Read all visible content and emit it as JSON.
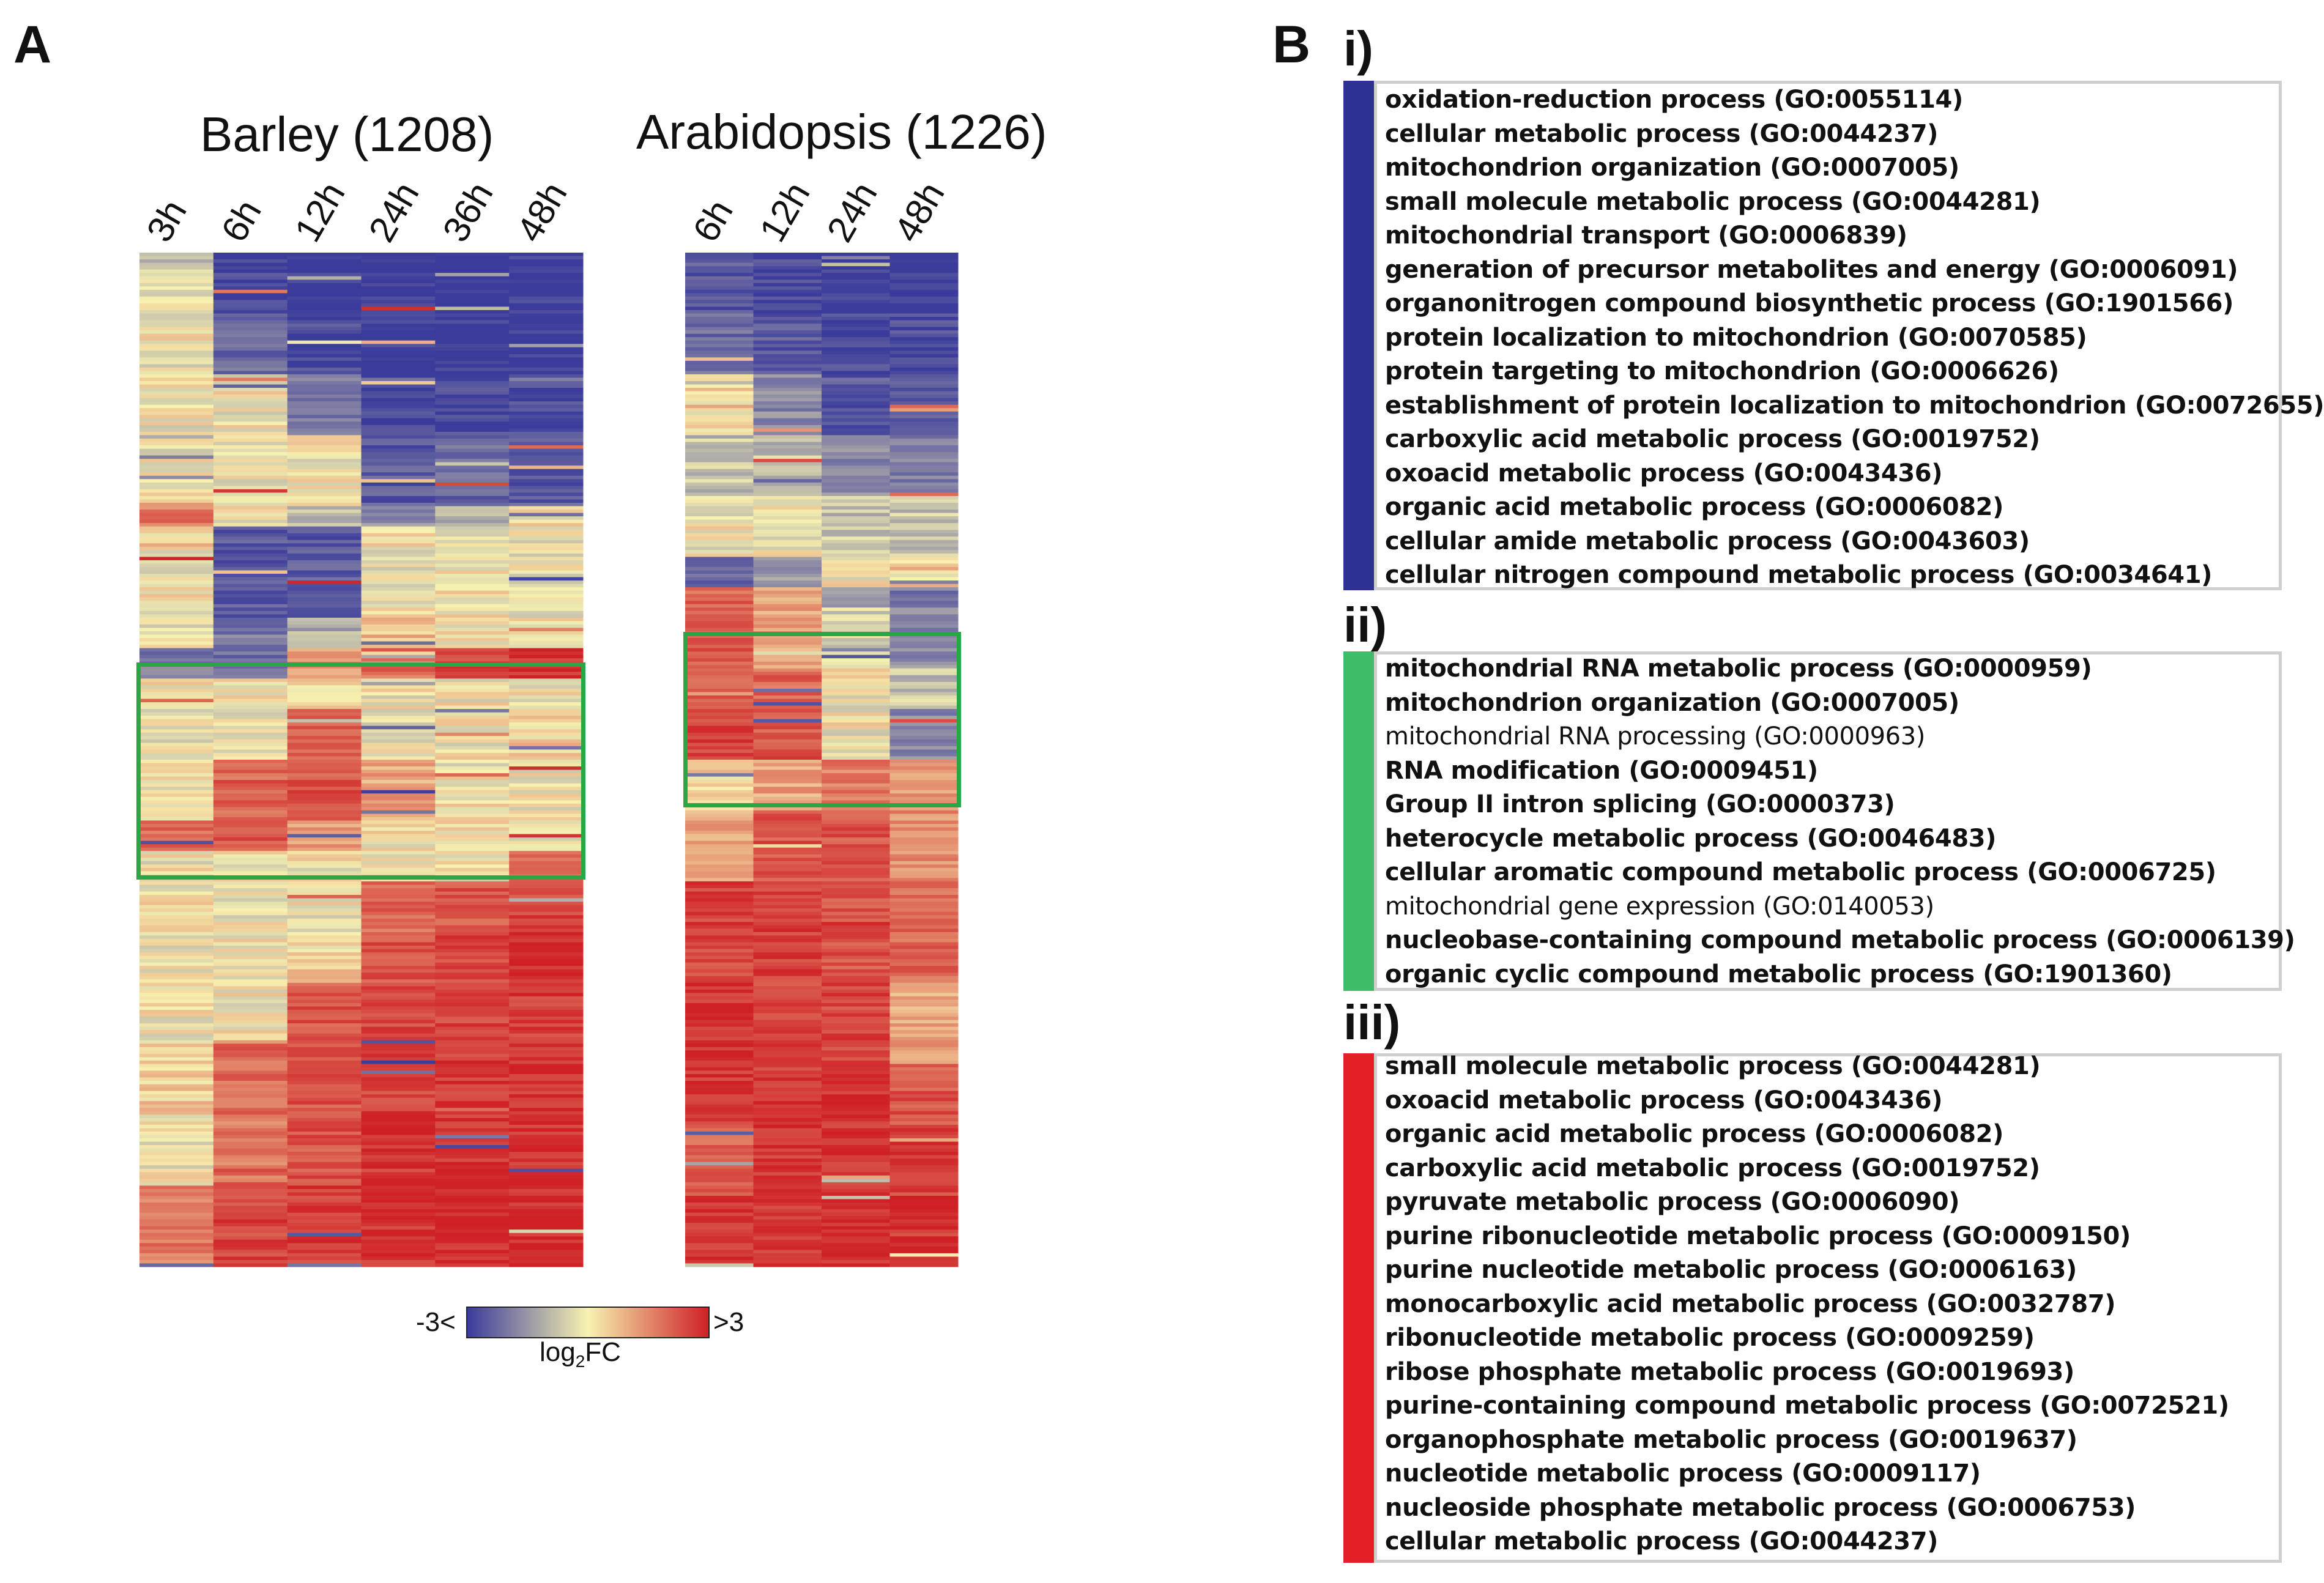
{
  "panel_a_label": "A",
  "panel_b_label": "B",
  "chart_data": [
    {
      "type": "heatmap",
      "title": "Barley (1208)",
      "columns": [
        "3h",
        "6h",
        "12h",
        "24h",
        "36h",
        "48h"
      ],
      "highlight_box": "green"
    },
    {
      "type": "heatmap",
      "title": "Arabidopsis (1226)",
      "columns": [
        "6h",
        "12h",
        "24h",
        "48h"
      ],
      "highlight_box": "green"
    }
  ],
  "colorbar": {
    "min_label": "-3<",
    "max_label": ">3",
    "label_main": "log",
    "label_sub": "2",
    "label_tail": "FC",
    "colors": [
      "#3b3b9c",
      "#f7f2b0",
      "#cf2026"
    ]
  },
  "go_groups": [
    {
      "label": "i)",
      "color": "#2e3192",
      "terms": [
        {
          "text": "oxidation-reduction process (GO:0055114)",
          "bold": true
        },
        {
          "text": "cellular metabolic process (GO:0044237)",
          "bold": true
        },
        {
          "text": "mitochondrion organization (GO:0007005)",
          "bold": true
        },
        {
          "text": "small molecule metabolic process (GO:0044281)",
          "bold": true
        },
        {
          "text": "mitochondrial transport (GO:0006839)",
          "bold": true
        },
        {
          "text": "generation of precursor metabolites and energy (GO:0006091)",
          "bold": true
        },
        {
          "text": "organonitrogen compound biosynthetic process (GO:1901566)",
          "bold": true
        },
        {
          "text": "protein localization to mitochondrion (GO:0070585)",
          "bold": true
        },
        {
          "text": "protein targeting to mitochondrion (GO:0006626)",
          "bold": true
        },
        {
          "text": "establishment of protein localization to mitochondrion (GO:0072655)",
          "bold": true
        },
        {
          "text": "carboxylic acid metabolic process (GO:0019752)",
          "bold": true
        },
        {
          "text": "oxoacid metabolic process (GO:0043436)",
          "bold": true
        },
        {
          "text": "organic acid metabolic process (GO:0006082)",
          "bold": true
        },
        {
          "text": "cellular amide metabolic process (GO:0043603)",
          "bold": true
        },
        {
          "text": "cellular nitrogen compound metabolic process (GO:0034641)",
          "bold": true
        }
      ]
    },
    {
      "label": "ii)",
      "color": "#3ebc6a",
      "terms": [
        {
          "text": "mitochondrial RNA metabolic process (GO:0000959)",
          "bold": true
        },
        {
          "text": "mitochondrion organization (GO:0007005)",
          "bold": true
        },
        {
          "text": "mitochondrial RNA processing (GO:0000963)",
          "bold": false
        },
        {
          "text": "RNA modification (GO:0009451)",
          "bold": true
        },
        {
          "text": "Group II intron splicing (GO:0000373)",
          "bold": true
        },
        {
          "text": "heterocycle metabolic process (GO:0046483)",
          "bold": true
        },
        {
          "text": "cellular aromatic compound metabolic process (GO:0006725)",
          "bold": true
        },
        {
          "text": "mitochondrial gene expression (GO:0140053)",
          "bold": false
        },
        {
          "text": "nucleobase-containing compound metabolic process (GO:0006139)",
          "bold": true
        },
        {
          "text": "organic cyclic compound metabolic process (GO:1901360)",
          "bold": true
        }
      ]
    },
    {
      "label": "iii)",
      "color": "#e41f26",
      "terms": [
        {
          "text": "small molecule metabolic process (GO:0044281)",
          "bold": true
        },
        {
          "text": "oxoacid metabolic process (GO:0043436)",
          "bold": true
        },
        {
          "text": "organic acid metabolic process (GO:0006082)",
          "bold": true
        },
        {
          "text": "carboxylic acid metabolic process (GO:0019752)",
          "bold": true
        },
        {
          "text": "pyruvate metabolic process (GO:0006090)",
          "bold": true
        },
        {
          "text": "purine ribonucleotide metabolic process (GO:0009150)",
          "bold": true
        },
        {
          "text": "purine nucleotide metabolic process (GO:0006163)",
          "bold": true
        },
        {
          "text": "monocarboxylic acid metabolic process (GO:0032787)",
          "bold": true
        },
        {
          "text": "ribonucleotide metabolic process (GO:0009259)",
          "bold": true
        },
        {
          "text": "ribose phosphate metabolic process (GO:0019693)",
          "bold": true
        },
        {
          "text": "purine-containing compound metabolic process (GO:0072521)",
          "bold": true
        },
        {
          "text": "organophosphate metabolic process (GO:0019637)",
          "bold": true
        },
        {
          "text": "nucleotide metabolic process (GO:0009117)",
          "bold": true
        },
        {
          "text": "nucleoside phosphate metabolic process (GO:0006753)",
          "bold": true
        },
        {
          "text": "cellular metabolic process (GO:0044237)",
          "bold": true
        }
      ]
    }
  ]
}
